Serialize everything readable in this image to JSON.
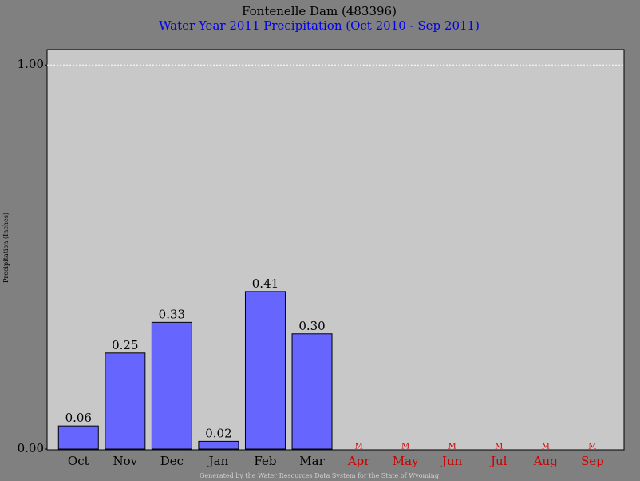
{
  "chart_data": {
    "type": "bar",
    "title": "Fontenelle Dam (483396)",
    "subtitle": "Water Year 2011 Precipitation (Oct 2010 - Sep 2011)",
    "y_label": "Precipitation (Inches)",
    "footer": "Generated by the Water Resources Data System for the State of Wyoming",
    "categories": [
      "Oct",
      "Nov",
      "Dec",
      "Jan",
      "Feb",
      "Mar",
      "Apr",
      "May",
      "Jun",
      "Jul",
      "Aug",
      "Sep"
    ],
    "values": [
      0.06,
      0.25,
      0.33,
      0.02,
      0.41,
      0.3,
      null,
      null,
      null,
      null,
      null,
      null
    ],
    "value_labels": [
      "0.06",
      "0.25",
      "0.33",
      "0.02",
      "0.41",
      "0.30",
      "M",
      "M",
      "M",
      "M",
      "M",
      "M"
    ],
    "color": "#6666ff",
    "missing_color": "#cc0000",
    "ylim": [
      0,
      1.04
    ],
    "yticks": [
      {
        "value": 0,
        "label": "0.00"
      },
      {
        "value": 1,
        "label": "1.00"
      }
    ],
    "grid": true
  }
}
